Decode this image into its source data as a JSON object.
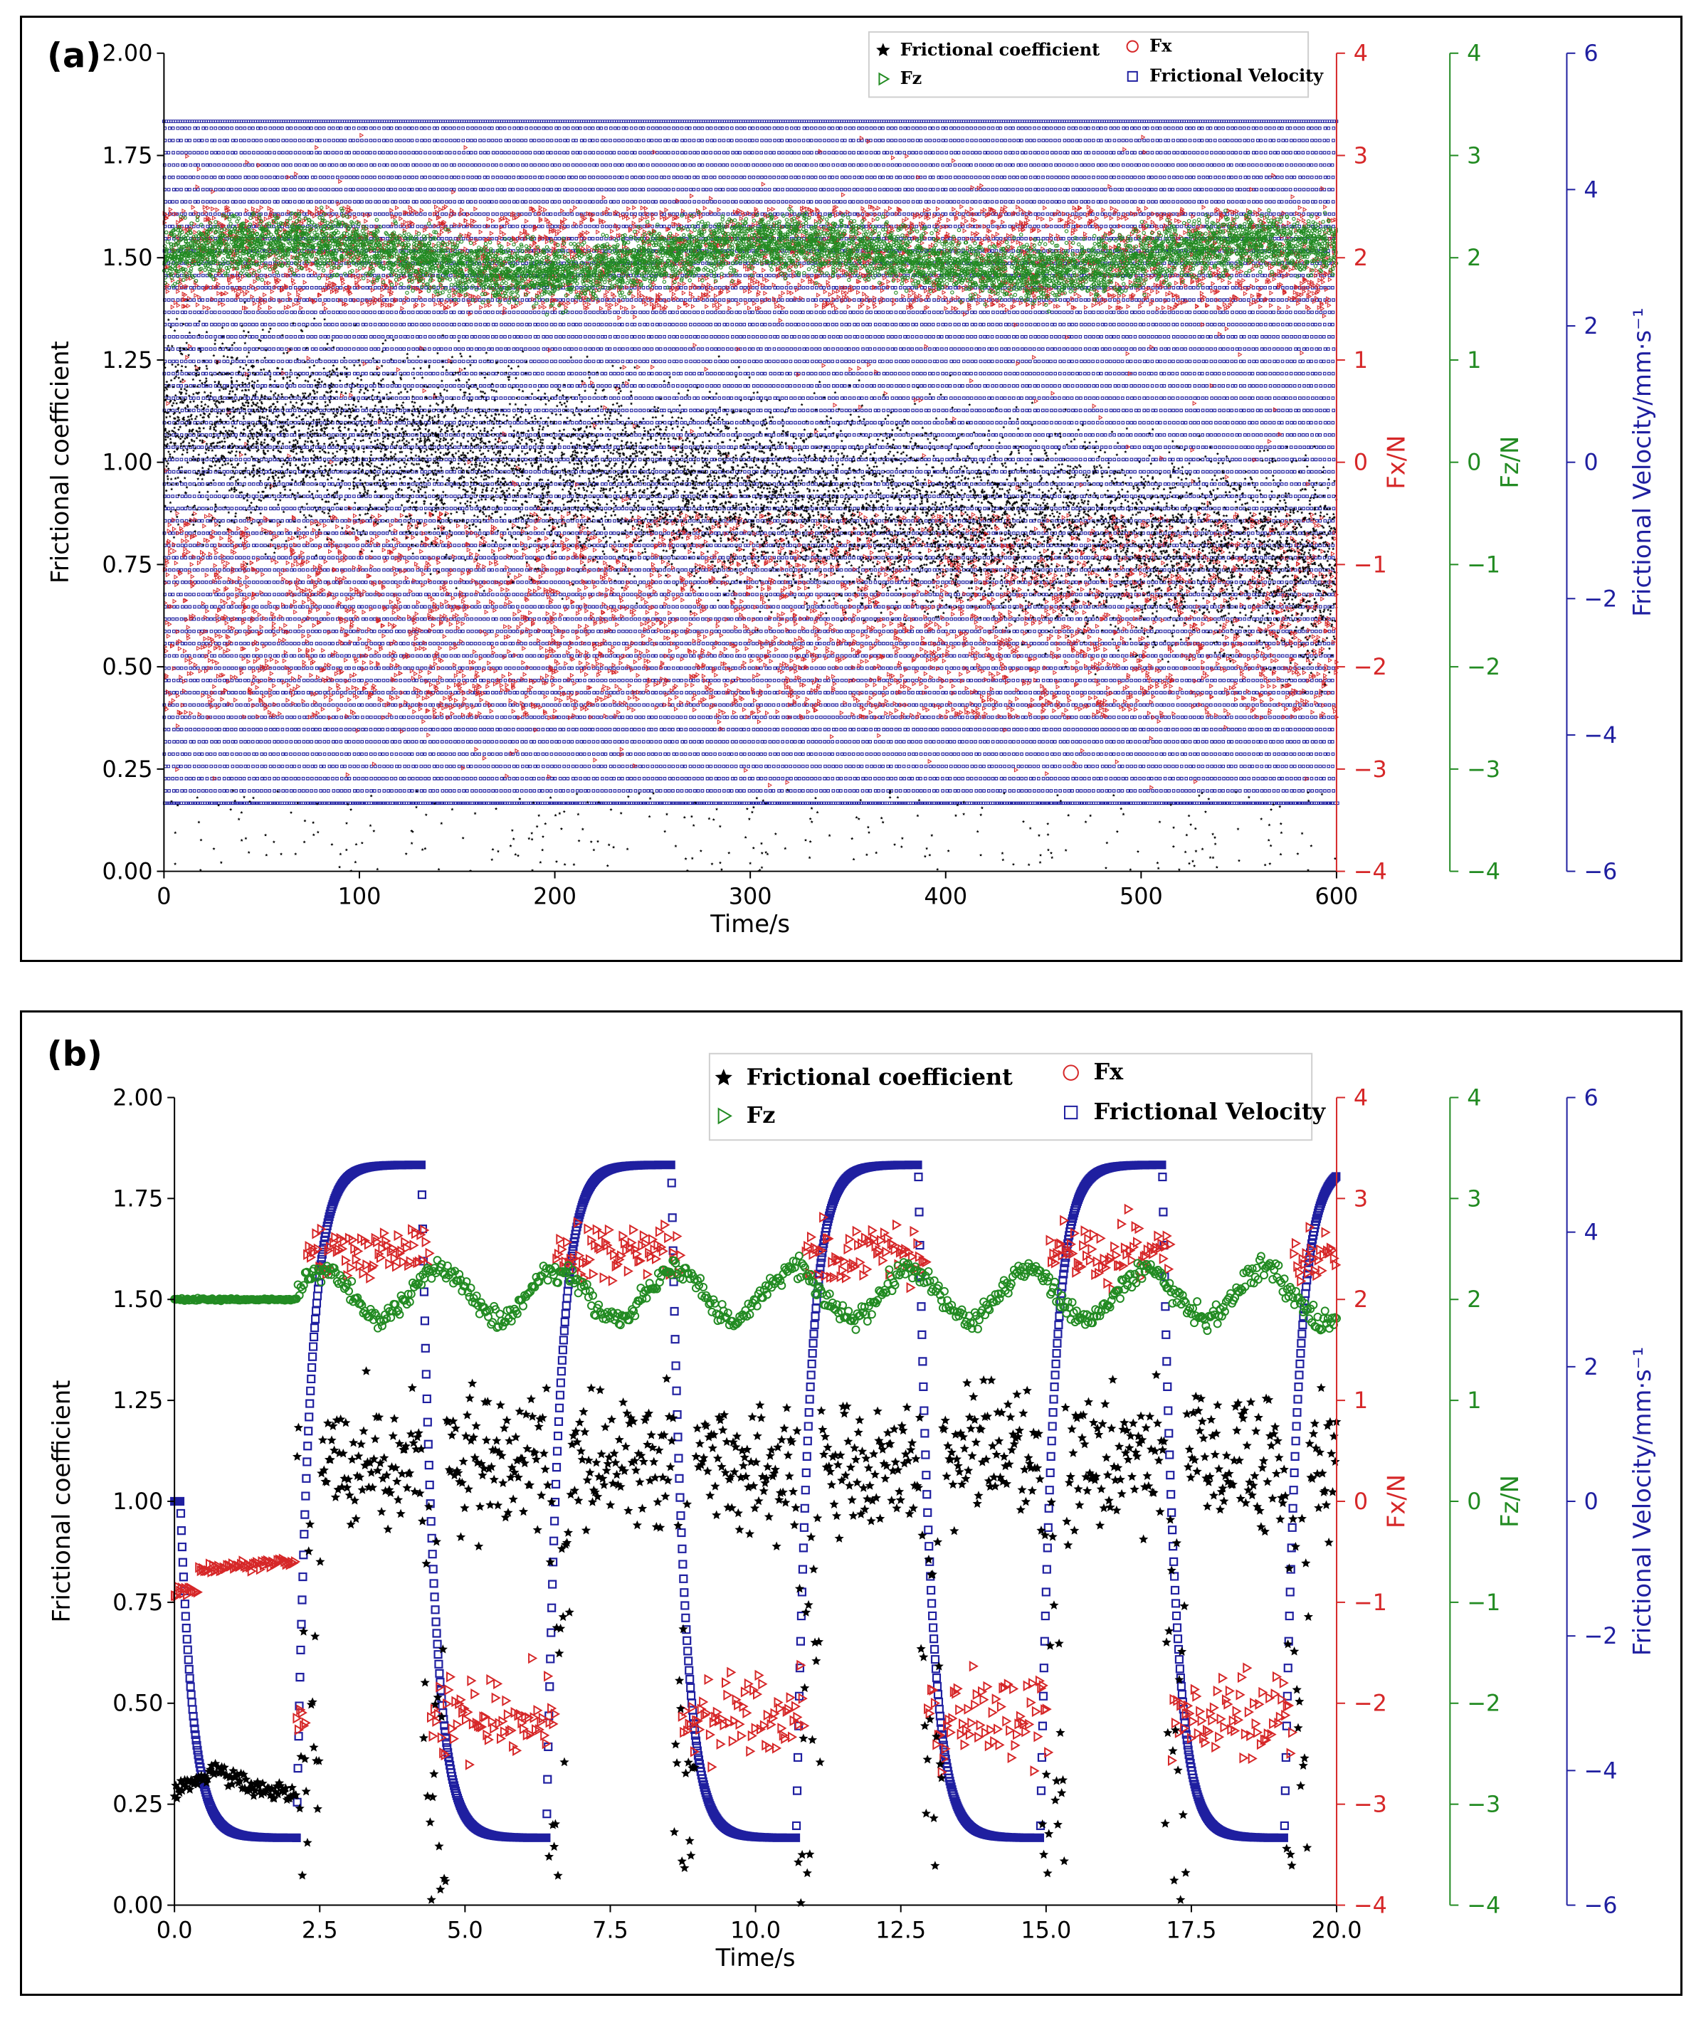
{
  "chart_data": [
    {
      "type": "scatter",
      "panel_label": "(a)",
      "xlabel": "Time/s",
      "xlim": [
        0,
        600
      ],
      "xticks": [
        "0",
        "100",
        "200",
        "300",
        "400",
        "500",
        "600"
      ],
      "axes": {
        "left": {
          "label": "Frictional coefficient",
          "lim": [
            0,
            2
          ],
          "ticks": [
            "0.00",
            "0.25",
            "0.50",
            "0.75",
            "1.00",
            "1.25",
            "1.50",
            "1.75",
            "2.00"
          ],
          "color": "#000000"
        },
        "fx": {
          "label": "Fx/N",
          "lim": [
            -4,
            4
          ],
          "ticks": [
            "−4",
            "−3",
            "−2",
            "−1",
            "0",
            "1",
            "2",
            "3",
            "4"
          ],
          "color": "#d62728"
        },
        "fz": {
          "label": "Fz/N",
          "lim": [
            -4,
            4
          ],
          "ticks": [
            "−4",
            "−3",
            "−2",
            "−1",
            "0",
            "1",
            "2",
            "3",
            "4"
          ],
          "color": "#228b22"
        },
        "vel": {
          "label": "Frictional Velocity/mm·s⁻¹",
          "lim": [
            -6,
            6
          ],
          "ticks": [
            "−6",
            "−4",
            "−2",
            "0",
            "2",
            "4",
            "6"
          ],
          "color": "#1f1fa0"
        }
      },
      "legend": {
        "placement": "top-right",
        "entries": [
          "Frictional coefficient",
          "Fz",
          "Fx",
          "Frictional Velocity"
        ]
      },
      "series": [
        {
          "name": "Frictional coefficient",
          "marker": "star",
          "color": "#000000",
          "typical_range": [
            0.4,
            1.4
          ],
          "trend": [
            [
              0,
              1.1
            ],
            [
              100,
              0.95
            ],
            [
              300,
              0.85
            ],
            [
              600,
              0.75
            ]
          ]
        },
        {
          "name": "Fx",
          "marker": "triangle",
          "color": "#d62728",
          "low_band": [
            -2.5,
            -0.5
          ],
          "high_band": [
            1.5,
            2.5
          ]
        },
        {
          "name": "Fz",
          "marker": "circle",
          "color": "#228b22",
          "band": [
            1.3,
            2.6
          ]
        },
        {
          "name": "Frictional Velocity",
          "marker": "square",
          "color": "#1f1fa0",
          "high": 5.0,
          "low": -5.0,
          "period": 4.3
        }
      ]
    },
    {
      "type": "scatter",
      "panel_label": "(b)",
      "xlabel": "Time/s",
      "xlim": [
        0,
        20
      ],
      "xticks": [
        "0.0",
        "2.5",
        "5.0",
        "7.5",
        "10.0",
        "12.5",
        "15.0",
        "17.5",
        "20.0"
      ],
      "axes": {
        "left": {
          "label": "Frictional coefficient",
          "lim": [
            0,
            2
          ],
          "ticks": [
            "0.00",
            "0.25",
            "0.50",
            "0.75",
            "1.00",
            "1.25",
            "1.50",
            "1.75",
            "2.00"
          ],
          "color": "#000000"
        },
        "fx": {
          "label": "Fx/N",
          "lim": [
            -4,
            4
          ],
          "ticks": [
            "−4",
            "−3",
            "−2",
            "−1",
            "0",
            "1",
            "2",
            "3",
            "4"
          ],
          "color": "#d62728"
        },
        "fz": {
          "label": "Fz/N",
          "lim": [
            -4,
            4
          ],
          "ticks": [
            "−4",
            "−3",
            "−2",
            "−1",
            "0",
            "1",
            "2",
            "3",
            "4"
          ],
          "color": "#228b22"
        },
        "vel": {
          "label": "Frictional Velocity/mm·s⁻¹",
          "lim": [
            -6,
            6
          ],
          "ticks": [
            "−6",
            "−4",
            "−2",
            "0",
            "2",
            "4",
            "6"
          ],
          "color": "#1f1fa0"
        }
      },
      "legend": {
        "placement": "top-right",
        "entries": [
          "Frictional coefficient",
          "Fz",
          "Fx",
          "Frictional Velocity"
        ]
      },
      "velocity_profile": {
        "initial": 0.0,
        "start_decay": 0.1,
        "hold_start": 2.1,
        "high": 5.0,
        "low": -5.0,
        "rise_times": [
          2.1,
          6.4,
          10.7,
          14.9,
          19.1
        ],
        "fall_times": [
          4.25,
          8.55,
          12.8,
          17.0
        ]
      },
      "series": [
        {
          "name": "Frictional coefficient",
          "marker": "star",
          "color": "#000000",
          "rest_value": 0.25,
          "moving_range": [
            0.8,
            1.4
          ]
        },
        {
          "name": "Fx",
          "marker": "triangle",
          "color": "#d62728",
          "rest_value": -0.7,
          "positive_phase": [
            2.0,
            2.9
          ],
          "negative_phase": [
            -2.8,
            -1.5
          ]
        },
        {
          "name": "Fz",
          "marker": "circle",
          "color": "#228b22",
          "rest_value": 2.0,
          "moving_range": [
            1.6,
            2.5
          ]
        },
        {
          "name": "Frictional Velocity",
          "marker": "square",
          "color": "#1f1fa0"
        }
      ]
    }
  ]
}
